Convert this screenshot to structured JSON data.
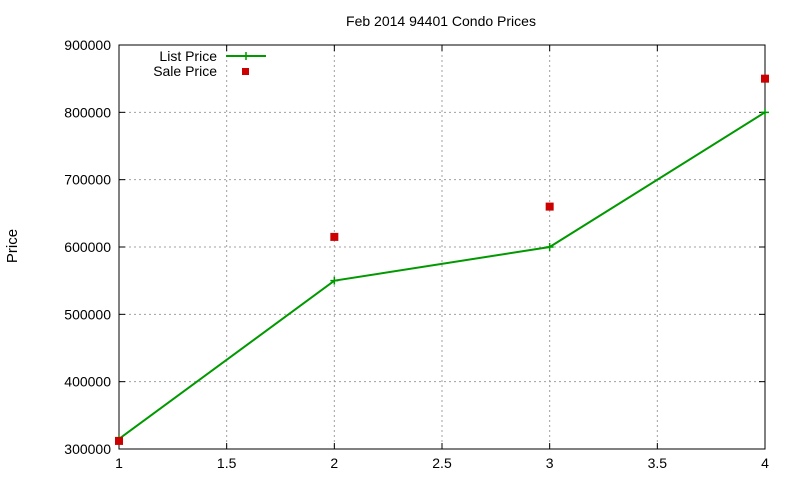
{
  "chart_data": {
    "type": "line",
    "title": "Feb 2014 94401 Condo Prices",
    "xlabel": "",
    "ylabel": "Price",
    "xlim": [
      1,
      4
    ],
    "ylim": [
      300000,
      900000
    ],
    "x_ticks": [
      "1",
      "1.5",
      "2",
      "2.5",
      "3",
      "3.5",
      "4"
    ],
    "y_ticks": [
      "300000",
      "400000",
      "500000",
      "600000",
      "700000",
      "800000",
      "900000"
    ],
    "grid": true,
    "legend_position": "top-left",
    "series": [
      {
        "name": "List Price",
        "style": "line-with-plus-markers",
        "color": "#009900",
        "x": [
          1,
          2,
          3,
          4
        ],
        "y": [
          315000,
          550000,
          600000,
          800000
        ]
      },
      {
        "name": "Sale Price",
        "style": "square-markers",
        "color": "#cc0000",
        "x": [
          1,
          2,
          3,
          4
        ],
        "y": [
          312000,
          615000,
          660000,
          850000
        ]
      }
    ]
  }
}
